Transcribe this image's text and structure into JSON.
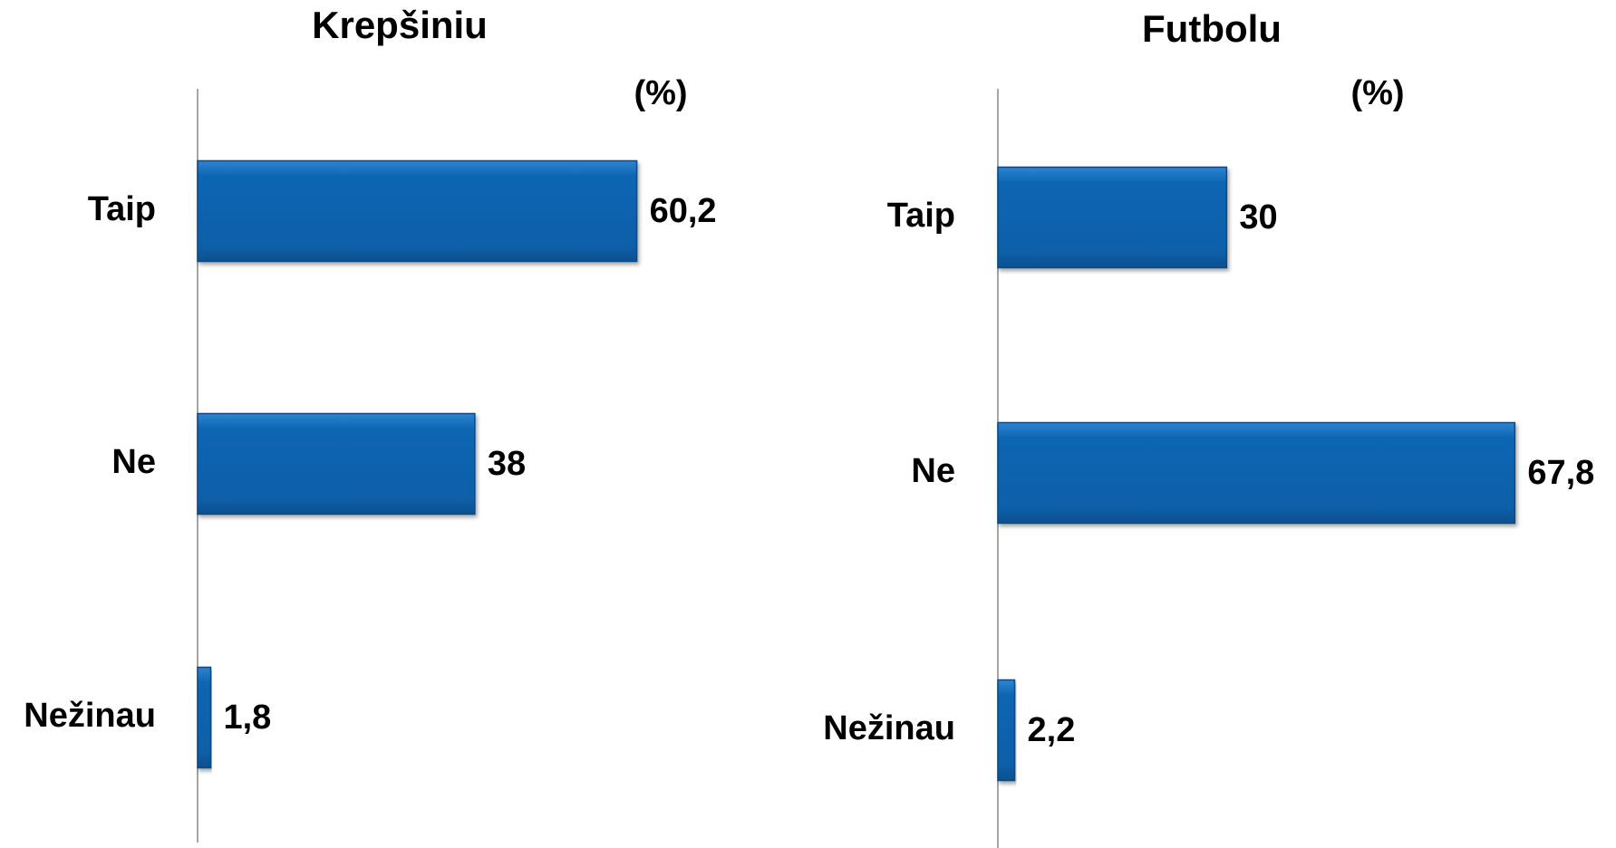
{
  "chart_data": [
    {
      "type": "barh",
      "title": "Krepšiniu",
      "unit_label": "(%)",
      "categories": [
        "Taip",
        "Ne",
        "Nežinau"
      ],
      "values": [
        60.2,
        38,
        1.8
      ],
      "value_labels": [
        "60,2",
        "38",
        "1,8"
      ],
      "color": "#0e66b3",
      "xlim": [
        0,
        80
      ]
    },
    {
      "type": "barh",
      "title": "Futbolu",
      "unit_label": "(%)",
      "categories": [
        "Taip",
        "Ne",
        "Nežinau"
      ],
      "values": [
        30,
        67.8,
        2.2
      ],
      "value_labels": [
        "30",
        "67,8",
        "2,2"
      ],
      "color": "#0e66b3",
      "xlim": [
        0,
        80
      ]
    }
  ]
}
